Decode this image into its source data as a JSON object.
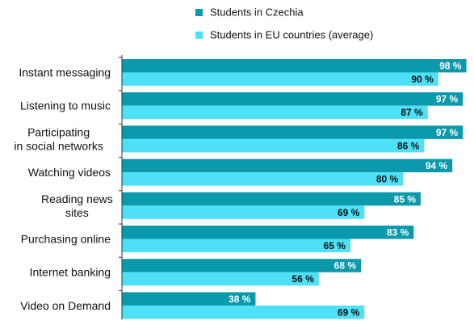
{
  "chart_data": {
    "type": "bar",
    "orientation": "horizontal",
    "title": "",
    "xlabel": "",
    "ylabel": "",
    "xlim": [
      0,
      100
    ],
    "grid": false,
    "legend_position": "top",
    "value_suffix": " %",
    "categories": [
      [
        "Instant messaging"
      ],
      [
        "Listening to music"
      ],
      [
        "Participating",
        "in social networks"
      ],
      [
        "Watching videos"
      ],
      [
        "Reading news",
        "sites"
      ],
      [
        "Purchasing online"
      ],
      [
        "Internet banking"
      ],
      [
        "Video on Demand"
      ]
    ],
    "series": [
      {
        "name": "Students in Czechia",
        "color": "#0a9aab",
        "label_color": "#ffffff",
        "values": [
          98,
          97,
          97,
          94,
          85,
          83,
          68,
          38
        ]
      },
      {
        "name": "Students in EU countries (average)",
        "color": "#4de0f6",
        "label_color": "#111111",
        "values": [
          90,
          87,
          86,
          80,
          69,
          65,
          56,
          69
        ]
      }
    ]
  }
}
